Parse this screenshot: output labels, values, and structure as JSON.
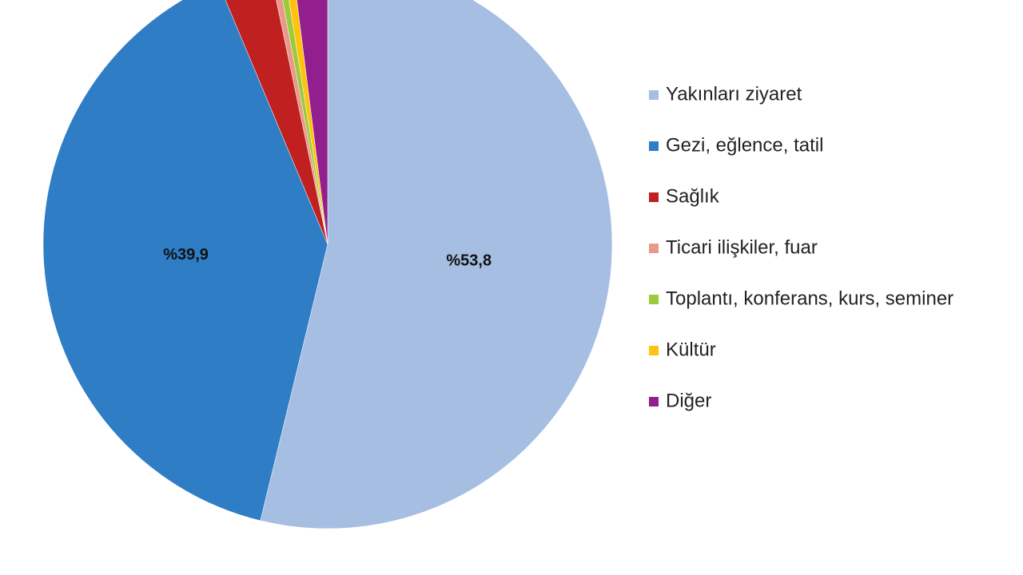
{
  "chart_data": {
    "type": "pie",
    "categories": [
      "Yakınları ziyaret",
      "Gezi, eğlence, tatil",
      "Sağlık",
      "Ticari ilişkiler, fuar",
      "Toplantı, konferans, kurs, seminer",
      "Kültür",
      "Diğer"
    ],
    "values": [
      53.8,
      39.9,
      3.0,
      0.4,
      0.4,
      0.5,
      2.0
    ],
    "value_labels": [
      "%53,8",
      "%39,9",
      null,
      null,
      null,
      null,
      null
    ],
    "colors": [
      "#a5bee2",
      "#2e7dc5",
      "#c0201f",
      "#e8998b",
      "#9bcb3b",
      "#ffc20e",
      "#921f8d"
    ]
  }
}
